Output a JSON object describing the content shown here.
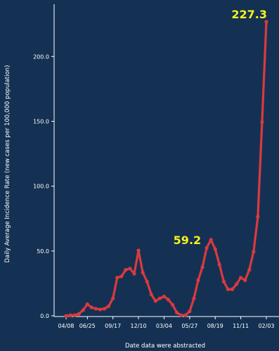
{
  "chart_data": {
    "type": "line",
    "title": "",
    "xlabel": "Date data were abstracted",
    "ylabel": "Daily Average Incidence Rate (new cases per 100,000 population)",
    "ylim": [
      0,
      230
    ],
    "yticks": [
      0,
      50,
      100,
      150,
      200
    ],
    "ytick_labels": [
      "0.0",
      "50.0",
      "100.0",
      "150.0",
      "200.0"
    ],
    "grid": false,
    "legend": "none",
    "line_color": "#d93a3f",
    "background_color": "#143153",
    "callout_color": "#f7f21f",
    "xtick_labels": [
      {
        "label": "04/08",
        "index": 0
      },
      {
        "label": "06/25",
        "index": 5
      },
      {
        "label": "09/17",
        "index": 11
      },
      {
        "label": "12/10",
        "index": 17
      },
      {
        "label": "03/04",
        "index": 23
      },
      {
        "label": "05/27",
        "index": 29
      },
      {
        "label": "08/19",
        "index": 35
      },
      {
        "label": "11/11",
        "index": 41
      },
      {
        "label": "02/03",
        "index": 47
      }
    ],
    "series": [
      {
        "values": [
          0.5,
          1.0,
          1.0,
          2.0,
          5.0,
          9.5,
          7.0,
          6.0,
          5.5,
          6.0,
          8.0,
          14.0,
          30.0,
          31.0,
          36.0,
          37.0,
          33.0,
          51.0,
          34.0,
          27.0,
          17.0,
          12.0,
          14.0,
          15.5,
          13.0,
          9.0,
          3.0,
          1.0,
          1.0,
          4.0,
          14.0,
          28.0,
          38.0,
          53.0,
          59.2,
          52.0,
          40.0,
          27.0,
          21.0,
          21.0,
          25.0,
          30.0,
          28.0,
          36.0,
          50.0,
          77.0,
          150.0,
          227.3
        ]
      }
    ],
    "annotations": [
      {
        "text": "59.2",
        "index": 34,
        "value": 59.2
      },
      {
        "text": "227.3",
        "index": 47,
        "value": 227.3
      }
    ]
  }
}
